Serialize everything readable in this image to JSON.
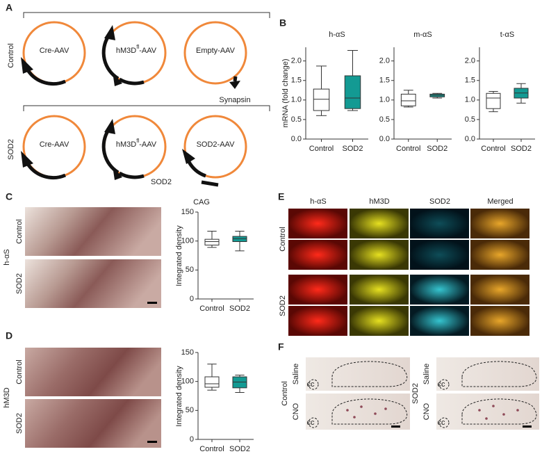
{
  "panels": {
    "A": {
      "letter": "A",
      "rows": [
        {
          "label": "Control",
          "plasmids": [
            "Cre-AAV",
            {
              "main": "hM3D",
              "sup": "fl",
              "rest": "-AAV"
            },
            "Empty-AAV"
          ]
        },
        {
          "label": "SOD2",
          "plasmids": [
            "Cre-AAV",
            {
              "main": "hM3D",
              "sup": "fl",
              "rest": "-AAV"
            },
            "SOD2-AAV"
          ]
        }
      ],
      "annotations": [
        "Synapsin",
        "SOD2",
        "CAG"
      ]
    },
    "B": {
      "letter": "B",
      "ylabel": "mRNA (fold change)",
      "plots": [
        {
          "type": "box",
          "title": "h-αS",
          "categories": [
            "Control",
            "SOD2"
          ],
          "ylim": [
            0,
            2.35
          ],
          "yticks": [
            {
              "value": 0,
              "label": "0.0"
            },
            {
              "value": 0.5,
              "label": "0.5"
            },
            {
              "value": 1,
              "label": "1.0"
            },
            {
              "value": 1.5,
              "label": "1.5"
            },
            {
              "value": 2,
              "label": "2.0"
            }
          ],
          "boxes": [
            {
              "color": "#ffffff",
              "whislo": 0.6,
              "q1": 0.73,
              "median": 1.02,
              "q3": 1.28,
              "whishi": 1.87
            },
            {
              "color": "#139a93",
              "whislo": 0.73,
              "q1": 0.78,
              "median": 1.05,
              "q3": 1.62,
              "whishi": 2.27
            }
          ]
        },
        {
          "type": "box",
          "title": "m-αS",
          "categories": [
            "Control",
            "SOD2"
          ],
          "ylim": [
            0,
            2.35
          ],
          "yticks": [
            {
              "value": 0,
              "label": "0.0"
            },
            {
              "value": 0.5,
              "label": "0.5"
            },
            {
              "value": 1,
              "label": "1.0"
            },
            {
              "value": 1.5,
              "label": "1.5"
            },
            {
              "value": 2,
              "label": "2.0"
            }
          ],
          "boxes": [
            {
              "color": "#ffffff",
              "whislo": 0.82,
              "q1": 0.85,
              "median": 0.98,
              "q3": 1.15,
              "whishi": 1.25
            },
            {
              "color": "#139a93",
              "whislo": 1.05,
              "q1": 1.08,
              "median": 1.12,
              "q3": 1.15,
              "whishi": 1.17
            }
          ]
        },
        {
          "type": "box",
          "title": "t-αS",
          "categories": [
            "Control",
            "SOD2"
          ],
          "ylim": [
            0,
            2.35
          ],
          "yticks": [
            {
              "value": 0,
              "label": "0.0"
            },
            {
              "value": 0.5,
              "label": "0.5"
            },
            {
              "value": 1,
              "label": "1.0"
            },
            {
              "value": 1.5,
              "label": "1.5"
            },
            {
              "value": 2,
              "label": "2.0"
            }
          ],
          "boxes": [
            {
              "color": "#ffffff",
              "whislo": 0.7,
              "q1": 0.78,
              "median": 1.05,
              "q3": 1.17,
              "whishi": 1.22
            },
            {
              "color": "#139a93",
              "whislo": 0.92,
              "q1": 1.05,
              "median": 1.18,
              "q3": 1.3,
              "whishi": 1.42
            }
          ]
        }
      ]
    },
    "C": {
      "letter": "C",
      "marker": "h-αS",
      "rows": [
        "Control",
        "SOD2"
      ],
      "plot": {
        "type": "box",
        "ylabel": "Integrated density",
        "categories": [
          "Control",
          "SOD2"
        ],
        "ylim": [
          0,
          150
        ],
        "yticks": [
          0,
          50,
          100,
          150
        ],
        "boxes": [
          {
            "color": "#ffffff",
            "whislo": 89,
            "q1": 93,
            "median": 99,
            "q3": 103,
            "whishi": 117
          },
          {
            "color": "#139a93",
            "whislo": 83,
            "q1": 99,
            "median": 104,
            "q3": 108,
            "whishi": 117
          }
        ]
      }
    },
    "D": {
      "letter": "D",
      "marker": "hM3D",
      "rows": [
        "Control",
        "SOD2"
      ],
      "plot": {
        "type": "box",
        "ylabel": "Integrated density",
        "categories": [
          "Control",
          "SOD2"
        ],
        "ylim": [
          0,
          150
        ],
        "yticks": [
          0,
          50,
          100,
          150
        ],
        "boxes": [
          {
            "color": "#ffffff",
            "whislo": 85,
            "q1": 90,
            "median": 96,
            "q3": 108,
            "whishi": 130
          },
          {
            "color": "#139a93",
            "whislo": 81,
            "q1": 89,
            "median": 99,
            "q3": 108,
            "whishi": 111
          }
        ]
      }
    },
    "E": {
      "letter": "E",
      "columns": [
        "h-αS",
        "hM3D",
        "SOD2",
        "Merged"
      ],
      "rows": [
        "Control",
        "SOD2"
      ]
    },
    "F": {
      "letter": "F",
      "groups": [
        "Control",
        "SOD2"
      ],
      "conditions": [
        "Saline",
        "CNO"
      ],
      "annotation": "cc"
    }
  }
}
